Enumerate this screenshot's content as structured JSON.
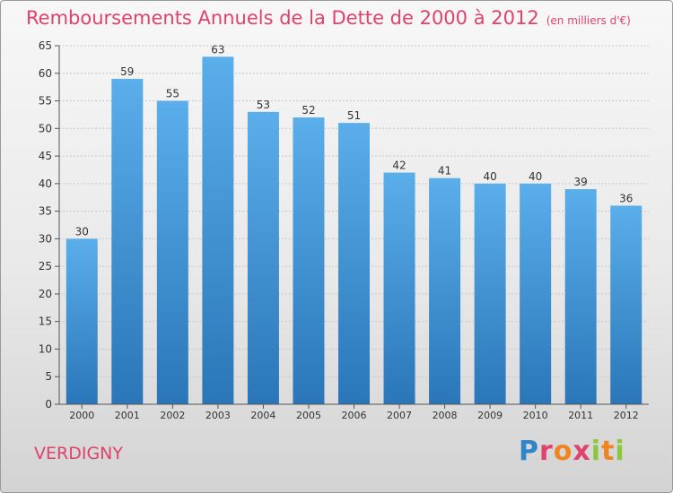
{
  "header": {
    "title": "Remboursements Annuels de la Dette de 2000 à 2012",
    "unit": "(en milliers d'€)"
  },
  "footer": {
    "commune": "VERDIGNY",
    "logo_text": "Proxiti"
  },
  "colors": {
    "title": "#e0426b",
    "bar_top": "#5aaeea",
    "bar_bottom": "#2a76b8",
    "grid": "#c8c8c8"
  },
  "chart_data": {
    "type": "bar",
    "title": "Remboursements Annuels de la Dette de 2000 à 2012",
    "subtitle": "(en milliers d'€)",
    "categories": [
      "2000",
      "2001",
      "2002",
      "2003",
      "2004",
      "2005",
      "2006",
      "2007",
      "2008",
      "2009",
      "2010",
      "2011",
      "2012"
    ],
    "values": [
      30,
      59,
      55,
      63,
      53,
      52,
      51,
      42,
      41,
      40,
      40,
      39,
      36
    ],
    "ylim": [
      0,
      65
    ],
    "yticks": [
      0,
      5,
      10,
      15,
      20,
      25,
      30,
      35,
      40,
      45,
      50,
      55,
      60,
      65
    ],
    "grid": true,
    "data_labels": true
  }
}
